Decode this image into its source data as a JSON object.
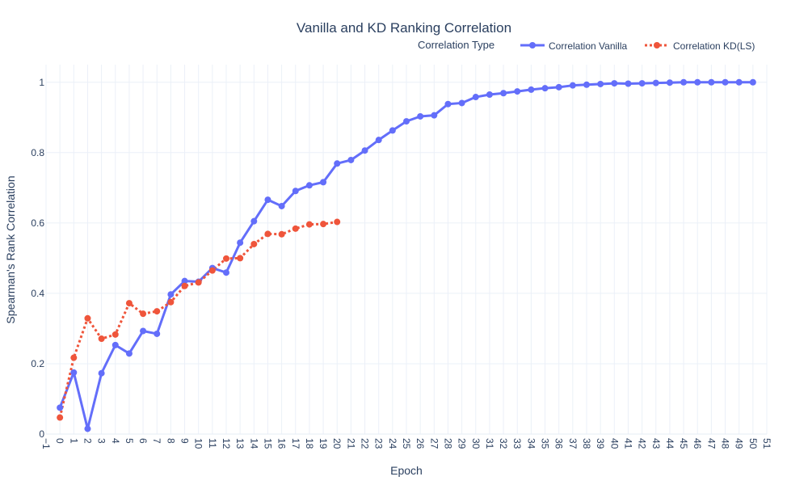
{
  "chart_data": {
    "type": "line",
    "title": "Vanilla and KD Ranking Correlation",
    "xlabel": "Epoch",
    "ylabel": "Spearman's Rank Correlation",
    "xlim": [
      -1,
      51
    ],
    "ylim": [
      0,
      1.05
    ],
    "x_ticks": [
      -1,
      0,
      1,
      2,
      3,
      4,
      5,
      6,
      7,
      8,
      9,
      10,
      11,
      12,
      13,
      14,
      15,
      16,
      17,
      18,
      19,
      20,
      21,
      22,
      23,
      24,
      25,
      26,
      27,
      28,
      29,
      30,
      31,
      32,
      33,
      34,
      35,
      36,
      37,
      38,
      39,
      40,
      41,
      42,
      43,
      44,
      45,
      46,
      47,
      48,
      49,
      50,
      51
    ],
    "x_tick_labels": [
      "−1",
      "0",
      "1",
      "2",
      "3",
      "4",
      "5",
      "6",
      "7",
      "8",
      "9",
      "10",
      "11",
      "12",
      "13",
      "14",
      "15",
      "16",
      "17",
      "18",
      "19",
      "20",
      "21",
      "22",
      "23",
      "24",
      "25",
      "26",
      "27",
      "28",
      "29",
      "30",
      "31",
      "32",
      "33",
      "34",
      "35",
      "36",
      "37",
      "38",
      "39",
      "40",
      "41",
      "42",
      "43",
      "44",
      "45",
      "46",
      "47",
      "48",
      "49",
      "50",
      "51"
    ],
    "y_ticks": [
      0,
      0.2,
      0.4,
      0.6,
      0.8,
      1
    ],
    "y_tick_labels": [
      "0",
      "0.2",
      "0.4",
      "0.6",
      "0.8",
      "1"
    ],
    "grid": true,
    "legend": {
      "title": "Correlation Type",
      "placement": "top-right",
      "orientation": "horizontal"
    },
    "series": [
      {
        "name": "Correlation Vanilla",
        "color": "#636efa",
        "dash": "solid",
        "x": [
          0,
          1,
          2,
          3,
          4,
          5,
          6,
          7,
          8,
          9,
          10,
          11,
          12,
          13,
          14,
          15,
          16,
          17,
          18,
          19,
          20,
          21,
          22,
          23,
          24,
          25,
          26,
          27,
          28,
          29,
          30,
          31,
          32,
          33,
          34,
          35,
          36,
          37,
          38,
          39,
          40,
          41,
          42,
          43,
          44,
          45,
          46,
          47,
          48,
          49,
          50
        ],
        "y": [
          0.075,
          0.175,
          0.015,
          0.173,
          0.253,
          0.229,
          0.293,
          0.285,
          0.397,
          0.435,
          0.433,
          0.472,
          0.459,
          0.544,
          0.605,
          0.666,
          0.648,
          0.691,
          0.707,
          0.716,
          0.769,
          0.779,
          0.806,
          0.836,
          0.863,
          0.889,
          0.903,
          0.906,
          0.938,
          0.941,
          0.958,
          0.965,
          0.969,
          0.974,
          0.979,
          0.983,
          0.986,
          0.991,
          0.993,
          0.995,
          0.997,
          0.996,
          0.997,
          0.998,
          0.999,
          1.0,
          1.0,
          1.0,
          1.0,
          1.0,
          1.0
        ]
      },
      {
        "name": "Correlation KD(LS)",
        "color": "#ef553b",
        "dash": "dot",
        "x": [
          0,
          1,
          2,
          3,
          4,
          5,
          6,
          7,
          8,
          9,
          10,
          11,
          12,
          13,
          14,
          15,
          16,
          17,
          18,
          19,
          20
        ],
        "y": [
          0.047,
          0.217,
          0.329,
          0.271,
          0.283,
          0.372,
          0.342,
          0.349,
          0.375,
          0.421,
          0.431,
          0.465,
          0.499,
          0.5,
          0.54,
          0.569,
          0.568,
          0.584,
          0.596,
          0.597,
          0.603
        ]
      }
    ]
  }
}
